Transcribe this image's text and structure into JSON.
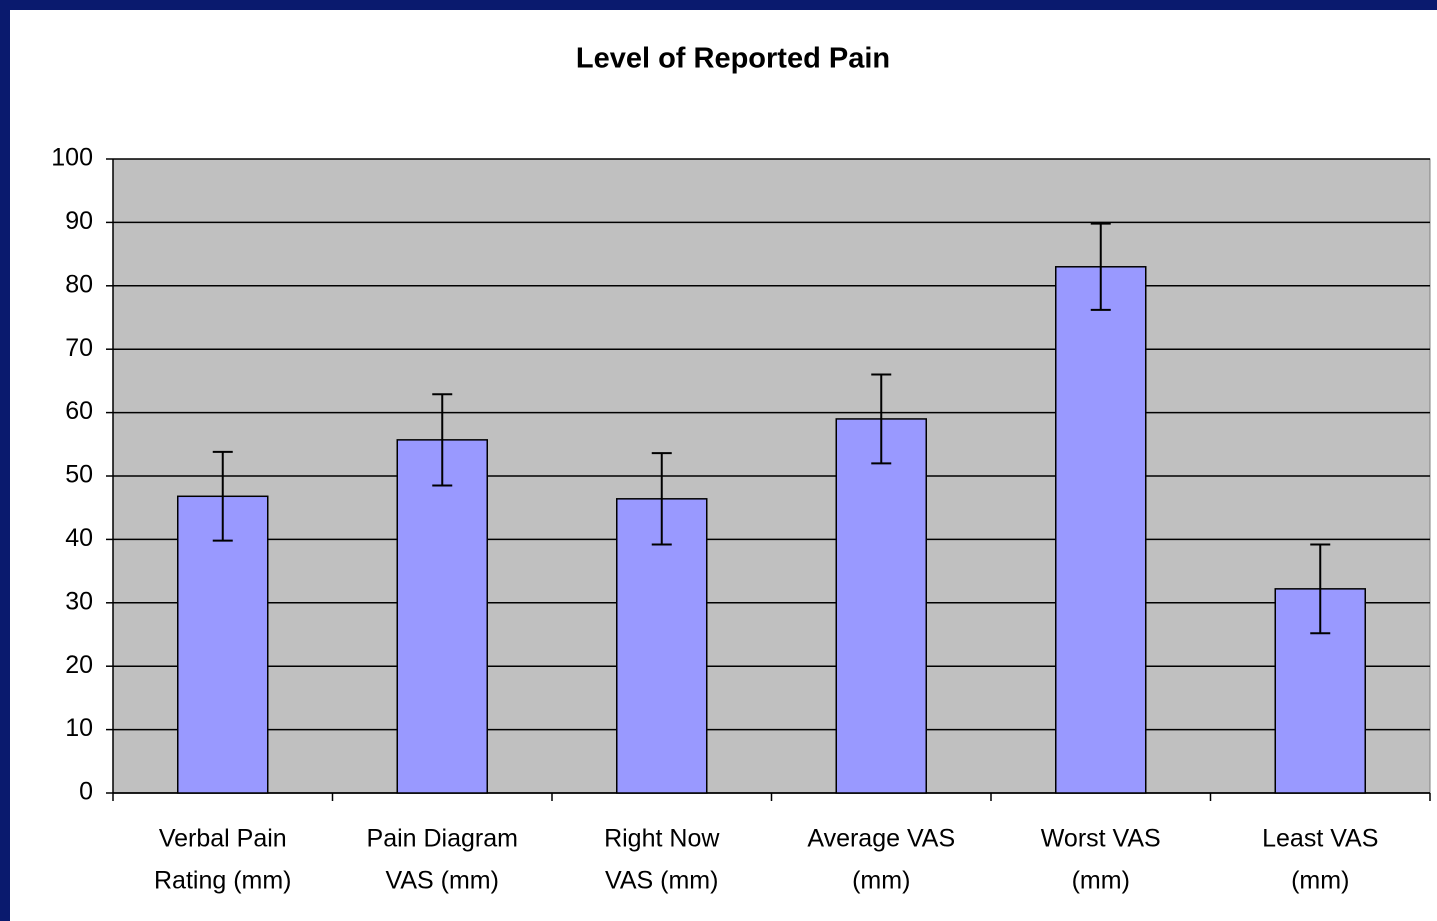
{
  "chart_data": {
    "type": "bar",
    "title": "Level of Reported Pain",
    "categories": [
      [
        "Verbal Pain",
        "Rating (mm)"
      ],
      [
        "Pain Diagram",
        "VAS (mm)"
      ],
      [
        "Right Now",
        "VAS (mm)"
      ],
      [
        "Average VAS",
        "(mm)"
      ],
      [
        "Worst VAS",
        "(mm)"
      ],
      [
        "Least VAS",
        "(mm)"
      ]
    ],
    "values": [
      46.8,
      55.7,
      46.4,
      59,
      83,
      32.2
    ],
    "errors": [
      7,
      7.2,
      7.2,
      7,
      6.8,
      7
    ],
    "color": "#9999ff",
    "plot_color": "#c0c0c0",
    "ylim": [
      0,
      100
    ],
    "yticks": [
      0,
      10,
      20,
      30,
      40,
      50,
      60,
      70,
      80,
      90,
      100
    ],
    "grid": true
  }
}
